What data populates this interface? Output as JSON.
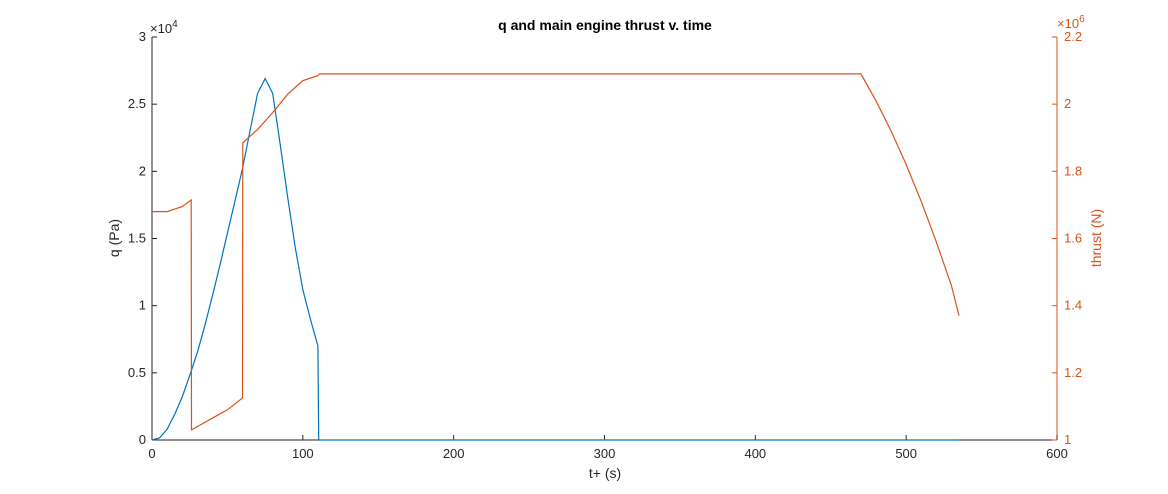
{
  "chart_data": {
    "type": "line",
    "title": "q and main engine thrust v. time",
    "xlabel": "t+ (s)",
    "xlim": [
      0,
      600
    ],
    "xticks": [
      "0",
      "100",
      "200",
      "300",
      "400",
      "500",
      "600"
    ],
    "grid": false,
    "legend": "none",
    "axes": {
      "left": {
        "label": "q (Pa)",
        "ylim": [
          0,
          30000
        ],
        "tick_values": [
          0,
          5000,
          10000,
          15000,
          20000,
          25000,
          30000
        ],
        "ticks": [
          "0",
          "0.5",
          "1",
          "1.5",
          "2",
          "2.5",
          "3"
        ],
        "exponent_base": "×10",
        "exponent_power": "4",
        "color": "#0072BD"
      },
      "right": {
        "label": "thrust (N)",
        "ylim": [
          1000000,
          2200000
        ],
        "tick_values": [
          1000000,
          1200000,
          1400000,
          1600000,
          1800000,
          2000000,
          2200000
        ],
        "ticks": [
          "1",
          "1.2",
          "1.4",
          "1.6",
          "1.8",
          "2",
          "2.2"
        ],
        "exponent_base": "×10",
        "exponent_power": "6",
        "color": "#D95319"
      }
    },
    "series": [
      {
        "axis": "left",
        "color": "#0072BD",
        "x": [
          0,
          5,
          10,
          15,
          20,
          25,
          30,
          35,
          40,
          45,
          50,
          55,
          60,
          65,
          70,
          75,
          80,
          85,
          90,
          95,
          100,
          105,
          110,
          110.5,
          111,
          200,
          300,
          400,
          500,
          535
        ],
        "y": [
          0,
          150,
          800,
          1900,
          3200,
          4800,
          6500,
          8500,
          10700,
          13000,
          15400,
          17800,
          20200,
          23000,
          25800,
          26900,
          25800,
          22000,
          18000,
          14300,
          11200,
          9000,
          7000,
          0,
          0,
          0,
          0,
          0,
          0,
          0
        ]
      },
      {
        "axis": "right",
        "color": "#D95319",
        "x": [
          0,
          10,
          20,
          26,
          26.2,
          40,
          50,
          60,
          60.2,
          70,
          80,
          90,
          100,
          110,
          111,
          200,
          300,
          400,
          470,
          480,
          490,
          500,
          510,
          520,
          530,
          535
        ],
        "y": [
          1680000,
          1680000,
          1695000,
          1715000,
          1030000,
          1065000,
          1090000,
          1125000,
          1885000,
          1925000,
          1975000,
          2030000,
          2070000,
          2085000,
          2090000,
          2090000,
          2090000,
          2090000,
          2090000,
          2010000,
          1920000,
          1820000,
          1710000,
          1590000,
          1460000,
          1370000
        ]
      }
    ]
  }
}
